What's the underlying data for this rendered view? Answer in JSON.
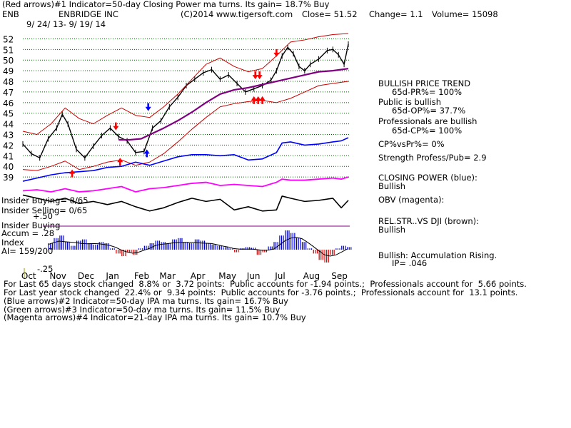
{
  "header": {
    "line1": "(Red arrows)#1 Indicator=50-day Closing Power ma turns. Its gain= 18.7% Buy",
    "ticker": "ENB",
    "company": "ENBRIDGE INC",
    "copyright": "(C)2014 www.tigersoft.com",
    "close": "Close= 51.52",
    "change": "Change= 1.1",
    "volume": "Volume= 15098",
    "date_range": "9/ 24/ 13- 9/ 19/ 14"
  },
  "side_text": {
    "trend_title": "BULLISH PRICE TREND",
    "pr": "65d-PR%= 100%",
    "public": "Public is bullish",
    "op": "65d-OP%= 37.7%",
    "prof": "Professionals are bullish",
    "cp": "65d-CP%= 100%",
    "cpvspr": "CP%vsPr%= 0%",
    "strength": "Strength Profess/Pub= 2.9",
    "closing_power": "CLOSING POWER (blue):",
    "closing_power_val": "Bullish",
    "obv": "OBV (magenta):",
    "relstr": "REL.STR..VS DJI (brown):",
    "relstr_val": "Bullish",
    "accum": "Bullish: Accumulation Rising.",
    "ip": "IP= .046"
  },
  "insider": {
    "buying": "Insider Buying= 8/65",
    "selling": "Insider Selling= 0/65",
    "buying2": "Insider Buying",
    "accum": "Accum = .28",
    "index": "Index",
    "ai": "AI= 159/200",
    "plus50": "+.50",
    "minus25": "-.25"
  },
  "footer": {
    "line1": "For Last 65 days stock changed  8.8% or  3.72 points:  Public accounts for -1.94 points.;  Professionals account for  5.66 points.",
    "line2": "For Last year stock changed  22.4% or  9.34 points:  Public accounts for -3.76 points.;  Professionals account for  13.1 points.",
    "line3": "(Blue arrows)#2 Indicator=50-day IPA ma turns. Its gain= 16.7% Buy",
    "line4": "(Green arrows)#3 Indicator=50-day ma turns. Its gain= 11.5% Buy",
    "line5": "(Magenta arrows)#4 Indicator=21-day IPA ma turns. Its gain= 10.7% Buy"
  },
  "colors": {
    "price": "#000000",
    "ma50": "#800080",
    "band": "#cc0000",
    "closing_power": "#0000ff",
    "obv": "#ff00ff",
    "relstr": "#000000",
    "accum_pos": "#0000cc",
    "accum_neg": "#cc0000",
    "grid": "#006400"
  },
  "chart_data": {
    "type": "line",
    "title": "ENBRIDGE INC",
    "ylim": [
      38,
      52.5
    ],
    "y_ticks": [
      39,
      40,
      41,
      42,
      43,
      44,
      45,
      46,
      47,
      48,
      49,
      50,
      51,
      52
    ],
    "x_labels": [
      "Oct",
      "Nov",
      "Dec",
      "Jan",
      "Feb",
      "Mar",
      "Apr",
      "May",
      "Jun",
      "Jul",
      "Aug",
      "Sep"
    ],
    "x_label_pos": [
      0.2,
      1.2,
      2.2,
      3.2,
      4.2,
      5.1,
      6.2,
      7.2,
      8.2,
      9.2,
      10.2,
      11.2
    ],
    "xlim": [
      0,
      11.6
    ],
    "series": [
      {
        "name": "price",
        "x": [
          0,
          0.3,
          0.6,
          0.9,
          1.2,
          1.4,
          1.6,
          1.9,
          2.2,
          2.5,
          2.8,
          3.1,
          3.4,
          3.7,
          4.0,
          4.3,
          4.6,
          4.9,
          5.2,
          5.5,
          5.8,
          6.1,
          6.4,
          6.7,
          7.0,
          7.3,
          7.6,
          7.9,
          8.2,
          8.5,
          8.8,
          9.0,
          9.2,
          9.4,
          9.6,
          9.8,
          10.0,
          10.2,
          10.5,
          10.8,
          11.0,
          11.2,
          11.4,
          11.55
        ],
        "values": [
          42.1,
          41.2,
          40.8,
          42.6,
          43.6,
          44.9,
          44.0,
          41.6,
          40.8,
          41.9,
          42.9,
          43.6,
          42.8,
          42.4,
          41.3,
          41.4,
          43.6,
          44.3,
          45.6,
          46.5,
          47.6,
          48.2,
          48.8,
          49.1,
          48.2,
          48.6,
          47.8,
          47.0,
          47.3,
          47.6,
          48.1,
          49.0,
          50.4,
          51.2,
          50.6,
          49.4,
          49.0,
          49.6,
          50.1,
          50.9,
          51.0,
          50.5,
          49.6,
          51.5
        ]
      },
      {
        "name": "ma50",
        "x": [
          3.4,
          3.8,
          4.2,
          4.6,
          5.0,
          5.5,
          6.0,
          6.5,
          7.0,
          7.5,
          8.0,
          8.5,
          9.0,
          9.5,
          10.0,
          10.5,
          11.0,
          11.55
        ],
        "values": [
          42.5,
          42.5,
          42.6,
          43.1,
          43.6,
          44.3,
          45.1,
          46.0,
          46.8,
          47.2,
          47.4,
          47.7,
          48.0,
          48.3,
          48.6,
          48.9,
          49.0,
          49.2
        ]
      },
      {
        "name": "band_upper",
        "x": [
          0,
          0.5,
          1.0,
          1.5,
          2.0,
          2.5,
          3.0,
          3.5,
          4.0,
          4.5,
          5.0,
          5.5,
          6.0,
          6.5,
          7.0,
          7.5,
          8.0,
          8.5,
          9.0,
          9.5,
          10.0,
          10.5,
          11.0,
          11.55
        ],
        "values": [
          43.3,
          43.0,
          44.0,
          45.5,
          44.5,
          44.0,
          44.8,
          45.5,
          44.8,
          44.6,
          45.6,
          46.8,
          48.2,
          49.6,
          50.2,
          49.4,
          48.9,
          49.2,
          50.4,
          51.7,
          51.9,
          52.2,
          52.4,
          52.5
        ]
      },
      {
        "name": "band_lower",
        "x": [
          0,
          0.5,
          1.0,
          1.5,
          2.0,
          2.5,
          3.0,
          3.5,
          4.0,
          4.5,
          5.0,
          5.5,
          6.0,
          6.5,
          7.0,
          7.5,
          8.0,
          8.5,
          9.0,
          9.5,
          10.0,
          10.5,
          11.0,
          11.55
        ],
        "values": [
          39.7,
          39.6,
          40.0,
          40.5,
          39.7,
          40.0,
          40.4,
          40.6,
          40.1,
          40.4,
          41.2,
          42.3,
          43.5,
          44.6,
          45.6,
          45.9,
          46.1,
          46.2,
          46.0,
          46.4,
          47.0,
          47.6,
          47.8,
          48.0
        ]
      },
      {
        "name": "closing_power",
        "x": [
          0,
          0.5,
          1.0,
          1.5,
          2.0,
          2.5,
          3.0,
          3.5,
          4.0,
          4.5,
          5.0,
          5.5,
          6.0,
          6.5,
          7.0,
          7.5,
          8.0,
          8.5,
          9.0,
          9.2,
          9.5,
          10.0,
          10.5,
          11.0,
          11.3,
          11.55
        ],
        "values": [
          38.6,
          38.9,
          39.2,
          39.4,
          39.5,
          39.6,
          39.9,
          40.0,
          40.4,
          40.1,
          40.5,
          40.9,
          41.1,
          41.1,
          41.0,
          41.1,
          40.6,
          40.7,
          41.3,
          42.2,
          42.3,
          42.0,
          42.1,
          42.3,
          42.4,
          42.7
        ]
      },
      {
        "name": "obv",
        "x": [
          0,
          0.5,
          1.0,
          1.5,
          2.0,
          2.5,
          3.0,
          3.5,
          4.0,
          4.5,
          5.0,
          5.5,
          6.0,
          6.5,
          7.0,
          7.5,
          8.0,
          8.5,
          9.0,
          9.2,
          9.5,
          10.0,
          10.5,
          11.0,
          11.3,
          11.55
        ],
        "values": [
          37.7,
          37.8,
          37.6,
          37.9,
          37.6,
          37.7,
          37.9,
          38.1,
          37.6,
          37.9,
          38.0,
          38.2,
          38.4,
          38.5,
          38.2,
          38.3,
          38.2,
          38.1,
          38.5,
          38.8,
          38.7,
          38.7,
          38.8,
          38.9,
          38.8,
          39.0
        ]
      },
      {
        "name": "relstr",
        "x": [
          0,
          0.5,
          1.0,
          1.5,
          2.0,
          2.5,
          3.0,
          3.5,
          4.0,
          4.5,
          5.0,
          5.5,
          6.0,
          6.5,
          7.0,
          7.5,
          8.0,
          8.5,
          9.0,
          9.2,
          9.5,
          10.0,
          10.5,
          11.0,
          11.3,
          11.55
        ],
        "values": [
          37.3,
          37.0,
          36.7,
          37.0,
          36.5,
          36.7,
          36.4,
          36.7,
          36.2,
          35.8,
          36.1,
          36.6,
          37.0,
          36.7,
          36.9,
          35.9,
          36.2,
          35.8,
          35.9,
          37.2,
          37.0,
          36.7,
          36.8,
          37.0,
          36.1,
          36.8
        ]
      }
    ],
    "accumulation": {
      "range": [
        -0.25,
        0.5
      ],
      "x": [
        0.9,
        1.1,
        1.3,
        1.5,
        1.7,
        1.9,
        2.1,
        2.3,
        2.5,
        2.7,
        2.9,
        3.1,
        3.3,
        3.5,
        3.7,
        3.9,
        4.1,
        4.3,
        4.5,
        4.7,
        4.9,
        5.1,
        5.3,
        5.5,
        5.7,
        5.9,
        6.1,
        6.3,
        6.5,
        6.7,
        6.9,
        7.1,
        7.3,
        7.5,
        7.7,
        7.9,
        8.1,
        8.3,
        8.5,
        8.7,
        8.9,
        9.1,
        9.3,
        9.5,
        9.7,
        9.9,
        10.1,
        10.3,
        10.5,
        10.7,
        10.9,
        11.1,
        11.3,
        11.5
      ],
      "values": [
        0.1,
        0.18,
        0.22,
        0.12,
        0.06,
        0.14,
        0.16,
        0.1,
        0.08,
        0.12,
        0.1,
        0.02,
        -0.06,
        -0.1,
        -0.04,
        -0.08,
        0.02,
        0.06,
        0.1,
        0.14,
        0.12,
        0.1,
        0.16,
        0.18,
        0.12,
        0.1,
        0.16,
        0.14,
        0.1,
        0.08,
        0.06,
        0.04,
        0.02,
        -0.04,
        0.02,
        0.04,
        0.03,
        -0.08,
        -0.04,
        0.05,
        0.12,
        0.22,
        0.3,
        0.26,
        0.18,
        0.12,
        0.02,
        -0.06,
        -0.16,
        -0.2,
        -0.08,
        0.02,
        0.06,
        0.04
      ]
    },
    "arrows": [
      {
        "color": "red",
        "dir": "up",
        "x": 1.75,
        "y": 39.3
      },
      {
        "color": "red",
        "dir": "down",
        "x": 3.3,
        "y": 43.8
      },
      {
        "color": "red",
        "dir": "up",
        "x": 3.45,
        "y": 40.4
      },
      {
        "color": "blue",
        "dir": "down",
        "x": 4.45,
        "y": 45.6
      },
      {
        "color": "blue",
        "dir": "up",
        "x": 4.4,
        "y": 41.2
      },
      {
        "color": "red",
        "dir": "down",
        "x": 8.25,
        "y": 48.6
      },
      {
        "color": "red",
        "dir": "down",
        "x": 8.4,
        "y": 48.6
      },
      {
        "color": "red",
        "dir": "up",
        "x": 8.2,
        "y": 46.2
      },
      {
        "color": "red",
        "dir": "up",
        "x": 8.35,
        "y": 46.2
      },
      {
        "color": "red",
        "dir": "up",
        "x": 8.5,
        "y": 46.2
      },
      {
        "color": "red",
        "dir": "down",
        "x": 9.0,
        "y": 50.7
      }
    ]
  }
}
